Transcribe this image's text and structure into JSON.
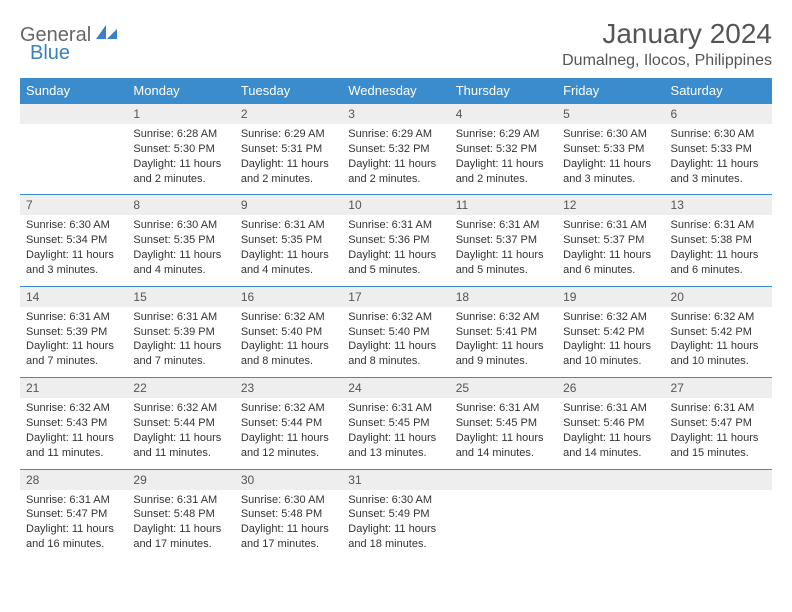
{
  "logo": {
    "part1": "General",
    "part2": "Blue"
  },
  "title": "January 2024",
  "location": "Dumalneg, Ilocos, Philippines",
  "colors": {
    "header_bg": "#3b8ccc",
    "header_text": "#ffffff",
    "daynum_bg": "#eeeeee",
    "daynum_text": "#555555",
    "cell_text": "#333333",
    "logo_gray": "#666666",
    "logo_blue": "#3b7fc4",
    "title_color": "#555555",
    "divider": "#3b8ccc"
  },
  "weekdays": [
    "Sunday",
    "Monday",
    "Tuesday",
    "Wednesday",
    "Thursday",
    "Friday",
    "Saturday"
  ],
  "weeks": [
    [
      null,
      {
        "n": "1",
        "sr": "6:28 AM",
        "ss": "5:30 PM",
        "dl": "11 hours and 2 minutes."
      },
      {
        "n": "2",
        "sr": "6:29 AM",
        "ss": "5:31 PM",
        "dl": "11 hours and 2 minutes."
      },
      {
        "n": "3",
        "sr": "6:29 AM",
        "ss": "5:32 PM",
        "dl": "11 hours and 2 minutes."
      },
      {
        "n": "4",
        "sr": "6:29 AM",
        "ss": "5:32 PM",
        "dl": "11 hours and 2 minutes."
      },
      {
        "n": "5",
        "sr": "6:30 AM",
        "ss": "5:33 PM",
        "dl": "11 hours and 3 minutes."
      },
      {
        "n": "6",
        "sr": "6:30 AM",
        "ss": "5:33 PM",
        "dl": "11 hours and 3 minutes."
      }
    ],
    [
      {
        "n": "7",
        "sr": "6:30 AM",
        "ss": "5:34 PM",
        "dl": "11 hours and 3 minutes."
      },
      {
        "n": "8",
        "sr": "6:30 AM",
        "ss": "5:35 PM",
        "dl": "11 hours and 4 minutes."
      },
      {
        "n": "9",
        "sr": "6:31 AM",
        "ss": "5:35 PM",
        "dl": "11 hours and 4 minutes."
      },
      {
        "n": "10",
        "sr": "6:31 AM",
        "ss": "5:36 PM",
        "dl": "11 hours and 5 minutes."
      },
      {
        "n": "11",
        "sr": "6:31 AM",
        "ss": "5:37 PM",
        "dl": "11 hours and 5 minutes."
      },
      {
        "n": "12",
        "sr": "6:31 AM",
        "ss": "5:37 PM",
        "dl": "11 hours and 6 minutes."
      },
      {
        "n": "13",
        "sr": "6:31 AM",
        "ss": "5:38 PM",
        "dl": "11 hours and 6 minutes."
      }
    ],
    [
      {
        "n": "14",
        "sr": "6:31 AM",
        "ss": "5:39 PM",
        "dl": "11 hours and 7 minutes."
      },
      {
        "n": "15",
        "sr": "6:31 AM",
        "ss": "5:39 PM",
        "dl": "11 hours and 7 minutes."
      },
      {
        "n": "16",
        "sr": "6:32 AM",
        "ss": "5:40 PM",
        "dl": "11 hours and 8 minutes."
      },
      {
        "n": "17",
        "sr": "6:32 AM",
        "ss": "5:40 PM",
        "dl": "11 hours and 8 minutes."
      },
      {
        "n": "18",
        "sr": "6:32 AM",
        "ss": "5:41 PM",
        "dl": "11 hours and 9 minutes."
      },
      {
        "n": "19",
        "sr": "6:32 AM",
        "ss": "5:42 PM",
        "dl": "11 hours and 10 minutes."
      },
      {
        "n": "20",
        "sr": "6:32 AM",
        "ss": "5:42 PM",
        "dl": "11 hours and 10 minutes."
      }
    ],
    [
      {
        "n": "21",
        "sr": "6:32 AM",
        "ss": "5:43 PM",
        "dl": "11 hours and 11 minutes."
      },
      {
        "n": "22",
        "sr": "6:32 AM",
        "ss": "5:44 PM",
        "dl": "11 hours and 11 minutes."
      },
      {
        "n": "23",
        "sr": "6:32 AM",
        "ss": "5:44 PM",
        "dl": "11 hours and 12 minutes."
      },
      {
        "n": "24",
        "sr": "6:31 AM",
        "ss": "5:45 PM",
        "dl": "11 hours and 13 minutes."
      },
      {
        "n": "25",
        "sr": "6:31 AM",
        "ss": "5:45 PM",
        "dl": "11 hours and 14 minutes."
      },
      {
        "n": "26",
        "sr": "6:31 AM",
        "ss": "5:46 PM",
        "dl": "11 hours and 14 minutes."
      },
      {
        "n": "27",
        "sr": "6:31 AM",
        "ss": "5:47 PM",
        "dl": "11 hours and 15 minutes."
      }
    ],
    [
      {
        "n": "28",
        "sr": "6:31 AM",
        "ss": "5:47 PM",
        "dl": "11 hours and 16 minutes."
      },
      {
        "n": "29",
        "sr": "6:31 AM",
        "ss": "5:48 PM",
        "dl": "11 hours and 17 minutes."
      },
      {
        "n": "30",
        "sr": "6:30 AM",
        "ss": "5:48 PM",
        "dl": "11 hours and 17 minutes."
      },
      {
        "n": "31",
        "sr": "6:30 AM",
        "ss": "5:49 PM",
        "dl": "11 hours and 18 minutes."
      },
      null,
      null,
      null
    ]
  ],
  "labels": {
    "sunrise": "Sunrise:",
    "sunset": "Sunset:",
    "daylight": "Daylight:"
  }
}
